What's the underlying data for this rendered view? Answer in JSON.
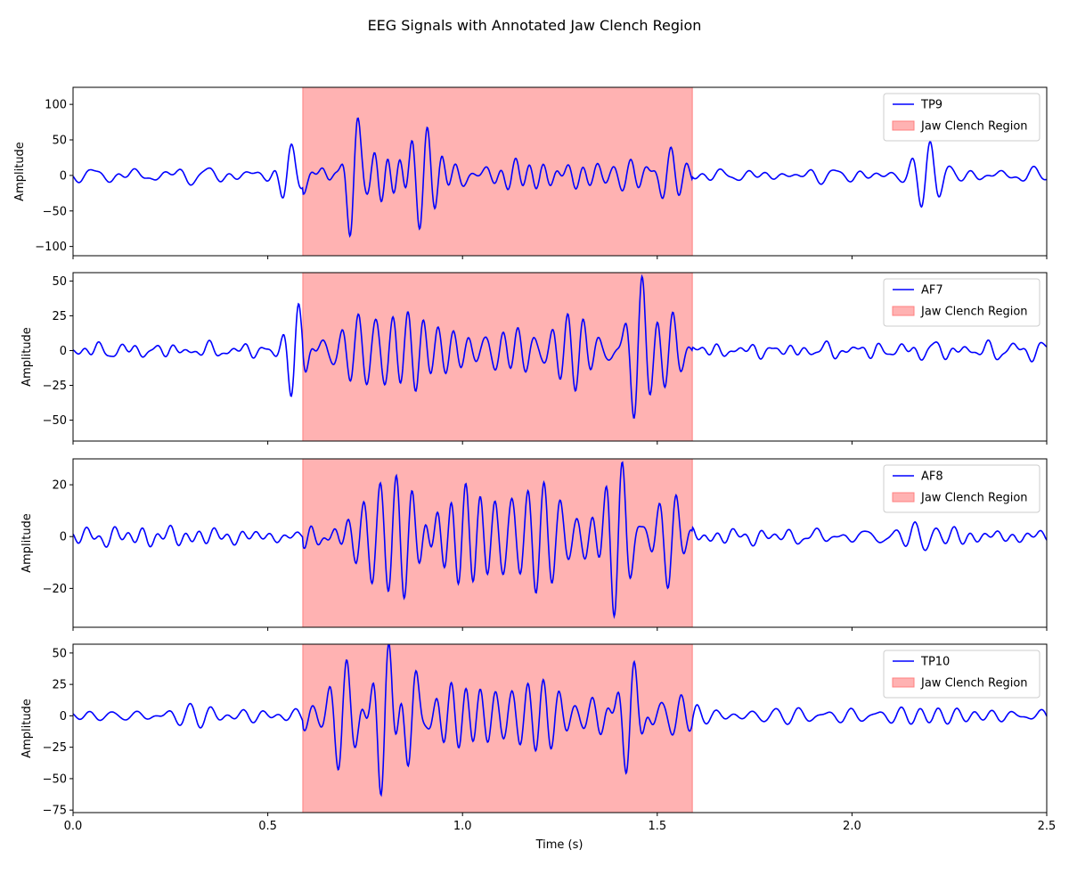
{
  "title": "EEG Signals with Annotated Jaw Clench Region",
  "xlabel": "Time (s)",
  "colors": {
    "signal": "#0000ff",
    "region_fill": "#ffb2b2",
    "region_edge": "#ff8080"
  },
  "chart_data": [
    {
      "type": "line",
      "series": [
        {
          "name": "TP9"
        }
      ],
      "region_label": "Jaw Clench Region",
      "region": [
        0.59,
        1.59
      ],
      "ylabel": "Amplitude",
      "xlim": [
        0,
        2.5
      ],
      "ylim": [
        -113,
        124
      ],
      "yticks": [
        100,
        50,
        0,
        -50,
        -100
      ],
      "ytick_labels": [
        "100",
        "50",
        "0",
        "−50",
        "−100"
      ],
      "legend": "top-right",
      "noise_amp": 11,
      "bursts": [
        {
          "t": 0.72,
          "w": 0.025,
          "a": 105,
          "f": 22
        },
        {
          "t": 0.8,
          "w": 0.05,
          "a": 35,
          "f": 28
        },
        {
          "t": 0.9,
          "w": 0.05,
          "a": 48,
          "f": 24
        },
        {
          "t": 1.05,
          "w": 0.2,
          "a": 20,
          "f": 26
        },
        {
          "t": 1.38,
          "w": 0.15,
          "a": 30,
          "f": 25
        },
        {
          "t": 1.52,
          "w": 0.05,
          "a": 40,
          "f": 22
        },
        {
          "t": 0.55,
          "w": 0.03,
          "a": 35,
          "f": 20
        },
        {
          "t": 2.19,
          "w": 0.04,
          "a": 62,
          "f": 20
        }
      ],
      "seed": 11
    },
    {
      "type": "line",
      "series": [
        {
          "name": "AF7"
        }
      ],
      "region_label": "Jaw Clench Region",
      "region": [
        0.59,
        1.59
      ],
      "ylabel": "Amplitude",
      "xlim": [
        0,
        2.5
      ],
      "ylim": [
        -65,
        56
      ],
      "yticks": [
        50,
        25,
        0,
        -25,
        -50
      ],
      "ytick_labels": [
        "50",
        "25",
        "0",
        "−25",
        "−50"
      ],
      "legend": "top-right",
      "noise_amp": 6,
      "bursts": [
        {
          "t": 0.57,
          "w": 0.025,
          "a": 38,
          "f": 22
        },
        {
          "t": 0.72,
          "w": 0.06,
          "a": 30,
          "f": 24
        },
        {
          "t": 0.85,
          "w": 0.1,
          "a": 25,
          "f": 26
        },
        {
          "t": 1.05,
          "w": 0.15,
          "a": 15,
          "f": 24
        },
        {
          "t": 1.3,
          "w": 0.1,
          "a": 25,
          "f": 24
        },
        {
          "t": 1.45,
          "w": 0.035,
          "a": 55,
          "f": 22
        },
        {
          "t": 1.53,
          "w": 0.04,
          "a": 25,
          "f": 22
        }
      ],
      "seed": 23
    },
    {
      "type": "line",
      "series": [
        {
          "name": "AF8"
        }
      ],
      "region_label": "Jaw Clench Region",
      "region": [
        0.59,
        1.59
      ],
      "ylabel": "Amplitude",
      "xlim": [
        0,
        2.5
      ],
      "ylim": [
        -35,
        30
      ],
      "yticks": [
        20,
        0,
        -20
      ],
      "ytick_labels": [
        "20",
        "0",
        "−20"
      ],
      "legend": "top-right",
      "noise_amp": 4,
      "bursts": [
        {
          "t": 0.82,
          "w": 0.08,
          "a": 22,
          "f": 24
        },
        {
          "t": 1.0,
          "w": 0.1,
          "a": 15,
          "f": 26
        },
        {
          "t": 1.2,
          "w": 0.1,
          "a": 18,
          "f": 24
        },
        {
          "t": 1.4,
          "w": 0.04,
          "a": 28,
          "f": 22
        },
        {
          "t": 1.54,
          "w": 0.04,
          "a": 18,
          "f": 22
        },
        {
          "t": 2.2,
          "w": 0.08,
          "a": 5,
          "f": 20
        }
      ],
      "seed": 37
    },
    {
      "type": "line",
      "series": [
        {
          "name": "TP10"
        }
      ],
      "region_label": "Jaw Clench Region",
      "region": [
        0.59,
        1.59
      ],
      "ylabel": "Amplitude",
      "xlim": [
        0,
        2.5
      ],
      "ylim": [
        -77,
        57
      ],
      "yticks": [
        50,
        25,
        0,
        -25,
        -50,
        -75
      ],
      "ytick_labels": [
        "50",
        "25",
        "0",
        "−25",
        "−50",
        "−75"
      ],
      "legend": "top-right",
      "noise_amp": 6,
      "bursts": [
        {
          "t": 0.69,
          "w": 0.04,
          "a": 40,
          "f": 22
        },
        {
          "t": 0.8,
          "w": 0.03,
          "a": 68,
          "f": 22
        },
        {
          "t": 0.87,
          "w": 0.03,
          "a": 50,
          "f": 22
        },
        {
          "t": 1.0,
          "w": 0.15,
          "a": 22,
          "f": 26
        },
        {
          "t": 1.2,
          "w": 0.08,
          "a": 25,
          "f": 24
        },
        {
          "t": 1.43,
          "w": 0.035,
          "a": 48,
          "f": 22
        },
        {
          "t": 1.55,
          "w": 0.04,
          "a": 22,
          "f": 22
        }
      ],
      "seed": 51
    }
  ],
  "xticks": [
    0.0,
    0.5,
    1.0,
    1.5,
    2.0,
    2.5
  ],
  "xtick_labels": [
    "0.0",
    "0.5",
    "1.0",
    "1.5",
    "2.0",
    "2.5"
  ]
}
